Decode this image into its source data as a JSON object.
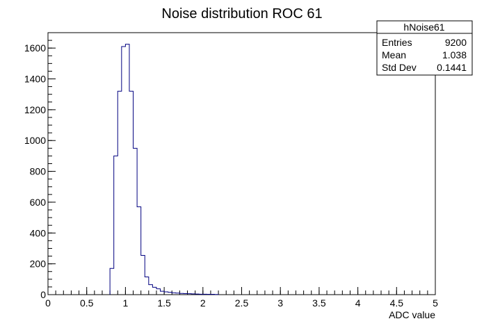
{
  "chart_data": {
    "type": "histogram",
    "title": "Noise distribution ROC 61",
    "xlabel": "ADC value",
    "ylabel": "",
    "xlim": [
      0,
      5
    ],
    "ylim": [
      0,
      1700
    ],
    "x_tick_labels": [
      "0",
      "0.5",
      "1",
      "1.5",
      "2",
      "2.5",
      "3",
      "3.5",
      "4",
      "4.5",
      "5"
    ],
    "y_tick_labels": [
      "0",
      "200",
      "400",
      "600",
      "800",
      "1000",
      "1200",
      "1400",
      "1600"
    ],
    "bin_width": 0.05,
    "bins": [
      {
        "x": 0.8,
        "y": 170
      },
      {
        "x": 0.85,
        "y": 900
      },
      {
        "x": 0.9,
        "y": 1320
      },
      {
        "x": 0.95,
        "y": 1610
      },
      {
        "x": 1.0,
        "y": 1625
      },
      {
        "x": 1.05,
        "y": 1320
      },
      {
        "x": 1.1,
        "y": 950
      },
      {
        "x": 1.15,
        "y": 570
      },
      {
        "x": 1.2,
        "y": 255
      },
      {
        "x": 1.25,
        "y": 115
      },
      {
        "x": 1.3,
        "y": 65
      },
      {
        "x": 1.35,
        "y": 48
      },
      {
        "x": 1.4,
        "y": 38
      },
      {
        "x": 1.45,
        "y": 22
      },
      {
        "x": 1.5,
        "y": 18
      },
      {
        "x": 1.55,
        "y": 15
      },
      {
        "x": 1.6,
        "y": 12
      },
      {
        "x": 1.65,
        "y": 10
      },
      {
        "x": 1.7,
        "y": 8
      },
      {
        "x": 1.75,
        "y": 7
      },
      {
        "x": 1.8,
        "y": 6
      },
      {
        "x": 1.85,
        "y": 5
      },
      {
        "x": 1.9,
        "y": 4
      },
      {
        "x": 1.95,
        "y": 3
      },
      {
        "x": 2.0,
        "y": 3
      },
      {
        "x": 2.05,
        "y": 2
      },
      {
        "x": 2.1,
        "y": 2
      },
      {
        "x": 2.15,
        "y": 1
      }
    ],
    "line_color": "#000080",
    "stats_box": {
      "name": "hNoise61",
      "rows": [
        {
          "label": "Entries",
          "value": "9200"
        },
        {
          "label": "Mean",
          "value": "1.038"
        },
        {
          "label": "Std Dev",
          "value": "0.1441"
        }
      ]
    }
  }
}
